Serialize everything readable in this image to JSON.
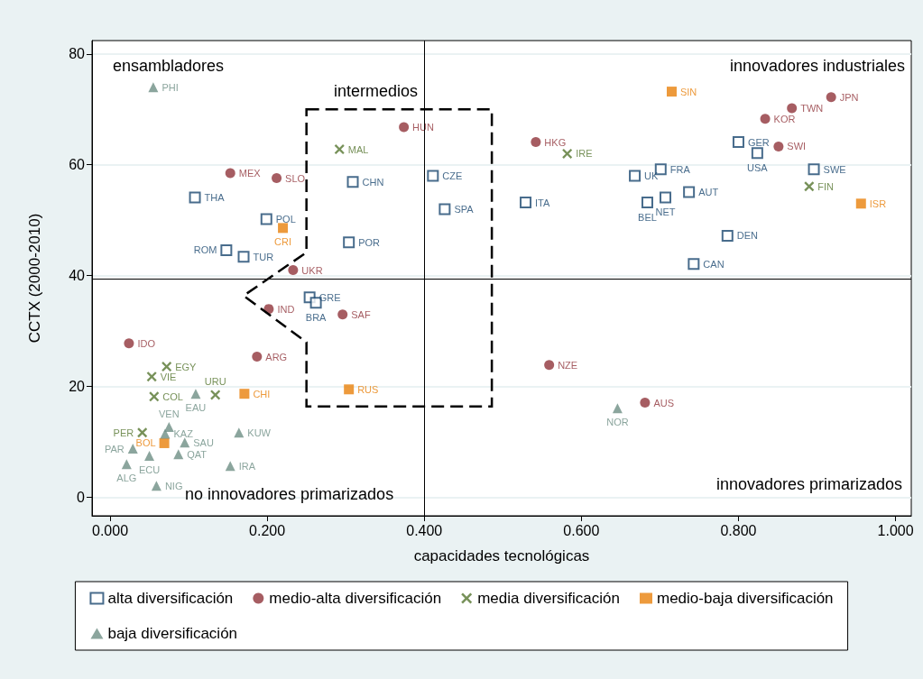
{
  "chart_data": {
    "type": "scatter",
    "xlabel": "capacidades tecnológicas",
    "ylabel": "CCTX (2000-2010)",
    "annotations": [
      "ensambladores",
      "intermedios",
      "innovadores industriales",
      "innovadores primarizados",
      "no innovadores primarizados"
    ],
    "xlim": [
      -0.023,
      1.02
    ],
    "ylim": [
      -3.3,
      82.4
    ],
    "xticks": [
      {
        "value": 0,
        "label": "0.000"
      },
      {
        "value": 0.2,
        "label": "0.200"
      },
      {
        "value": 0.4,
        "label": "0.400"
      },
      {
        "value": 0.6,
        "label": "0.600"
      },
      {
        "value": 0.8,
        "label": "0.800"
      },
      {
        "value": 1,
        "label": "1.000"
      }
    ],
    "yticks": [
      0,
      20,
      40,
      60,
      80
    ],
    "grid": "y",
    "legend": "bottom",
    "ref_lines": [
      {
        "axis": "x",
        "value": 0.4,
        "color": "#000000"
      },
      {
        "axis": "y",
        "value": 39.5,
        "color": "#000000"
      }
    ],
    "series": [
      {
        "name": "alta diversificación",
        "color": "#1a476f",
        "marker": "square",
        "x": [
          0.108,
          0.199,
          0.148,
          0.17,
          0.309,
          0.304,
          0.411,
          0.426,
          0.254,
          0.262,
          0.529,
          0.668,
          0.701,
          0.684,
          0.707,
          0.737,
          0.8,
          0.824,
          0.896,
          0.786,
          0.743
        ],
        "values": [
          54.1,
          50.2,
          44.6,
          43.4,
          56.9,
          46.0,
          58.0,
          52.0,
          36.1,
          35.1,
          53.2,
          58.0,
          59.2,
          53.2,
          54.1,
          55.1,
          64.1,
          62.1,
          59.2,
          47.2,
          42.1
        ],
        "value_labels": [
          "THA",
          "POL",
          "ROM",
          "TUR",
          "CHN",
          "POR",
          "CZE",
          "SPA",
          "GRE",
          "BRA",
          "ITA",
          "UK",
          "FRA",
          "BEL",
          "NET",
          "AUT",
          "GER",
          "USA",
          "SWE",
          "DEN",
          "CAN"
        ]
      },
      {
        "name": "medio-alta diversificación",
        "color": "#90353b",
        "marker": "circle",
        "x": [
          0.153,
          0.212,
          0.374,
          0.233,
          0.202,
          0.296,
          0.024,
          0.187,
          0.542,
          0.834,
          0.868,
          0.918,
          0.851,
          0.559,
          0.681
        ],
        "values": [
          58.5,
          57.6,
          66.8,
          41.0,
          34.0,
          33.0,
          27.8,
          25.4,
          64.1,
          68.3,
          70.2,
          72.2,
          63.3,
          23.9,
          17.1
        ],
        "value_labels": [
          "MEX",
          "SLO",
          "HUN",
          "UKR",
          "IND",
          "SAF",
          "IDO",
          "ARG",
          "HKG",
          "KOR",
          "TWN",
          "JPN",
          "SWI",
          "NZE",
          "AUS"
        ]
      },
      {
        "name": "media diversificación",
        "color": "#55752f",
        "marker": "cross",
        "x": [
          0.292,
          0.582,
          0.89,
          0.072,
          0.053,
          0.056,
          0.134,
          0.041
        ],
        "values": [
          62.8,
          62.0,
          56.1,
          23.6,
          21.8,
          18.2,
          18.5,
          11.7
        ],
        "value_labels": [
          "MAL",
          "IRE",
          "FIN",
          "EGY",
          "VIE",
          "COL",
          "URU",
          "PER"
        ]
      },
      {
        "name": "medio-baja diversificación",
        "color": "#e8810b",
        "marker": "square",
        "x": [
          0.715,
          0.956,
          0.22,
          0.171,
          0.304,
          0.069
        ],
        "values": [
          73.2,
          53.0,
          48.6,
          18.7,
          19.5,
          9.8
        ],
        "value_labels": [
          "SIN",
          "ISR",
          "CRI",
          "CHI",
          "RUS",
          "BOL"
        ]
      },
      {
        "name": "baja diversificación",
        "color": "#6e8e84",
        "marker": "triangle",
        "x": [
          0.055,
          0.109,
          0.075,
          0.07,
          0.095,
          0.087,
          0.029,
          0.05,
          0.021,
          0.059,
          0.164,
          0.153,
          0.646
        ],
        "values": [
          74.0,
          18.7,
          12.7,
          11.5,
          9.9,
          7.8,
          8.8,
          7.5,
          6.0,
          2.1,
          11.7,
          5.7,
          16.1
        ],
        "value_labels": [
          "PHI",
          "EAU",
          "VEN",
          "KAZ",
          "SAU",
          "QAT",
          "PAR",
          "ECU",
          "ALG",
          "NIG",
          "KUW",
          "IRA",
          "NOR"
        ]
      }
    ]
  }
}
